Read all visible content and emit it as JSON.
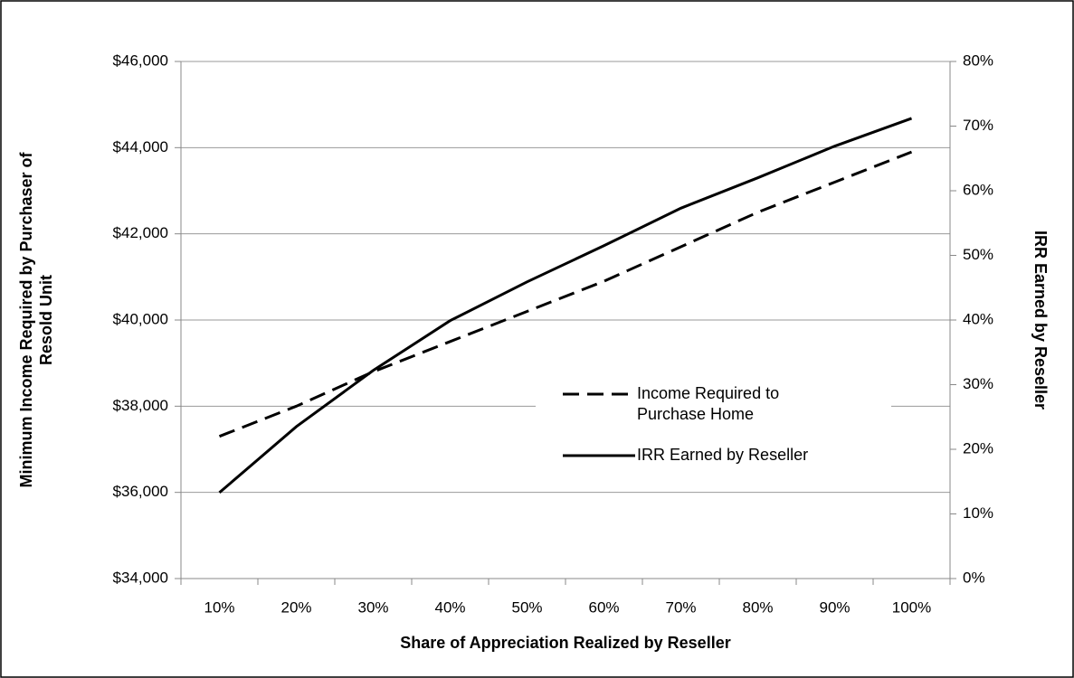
{
  "chart_data": {
    "type": "line",
    "xlabel": "Share of Appreciation Realized by Reseller",
    "ylabel": "Minimum Income Required by Purchaser of Resold Unit",
    "y2label": "IRR Earned by Reseller",
    "categories": [
      "10%",
      "20%",
      "30%",
      "40%",
      "50%",
      "60%",
      "70%",
      "80%",
      "90%",
      "100%"
    ],
    "series": [
      {
        "name": "Income Required to Purchase Home",
        "color": "#000000",
        "dash": true,
        "axis": "y",
        "values": [
          37300,
          38000,
          38800,
          39500,
          40200,
          40900,
          41700,
          42500,
          43200,
          43900
        ]
      },
      {
        "name": "IRR Earned by Reseller",
        "color": "#000000",
        "dash": false,
        "axis": "y2",
        "values": [
          13.3,
          23.5,
          32.2,
          39.9,
          45.9,
          51.5,
          57.3,
          62.0,
          66.9,
          71.2
        ]
      }
    ],
    "ylim": [
      34000,
      46000
    ],
    "yticks": [
      {
        "value": 34000,
        "label": "$34,000"
      },
      {
        "value": 36000,
        "label": "$36,000"
      },
      {
        "value": 38000,
        "label": "$38,000"
      },
      {
        "value": 40000,
        "label": "$40,000"
      },
      {
        "value": 42000,
        "label": "$42,000"
      },
      {
        "value": 44000,
        "label": "$44,000"
      },
      {
        "value": 46000,
        "label": "$46,000"
      }
    ],
    "y2lim": [
      0,
      80
    ],
    "y2ticks": [
      {
        "value": 0,
        "label": "0%"
      },
      {
        "value": 10,
        "label": "10%"
      },
      {
        "value": 20,
        "label": "20%"
      },
      {
        "value": 30,
        "label": "30%"
      },
      {
        "value": 40,
        "label": "40%"
      },
      {
        "value": 50,
        "label": "50%"
      },
      {
        "value": 60,
        "label": "60%"
      },
      {
        "value": 70,
        "label": "70%"
      },
      {
        "value": 80,
        "label": "80%"
      }
    ],
    "grid": true
  }
}
